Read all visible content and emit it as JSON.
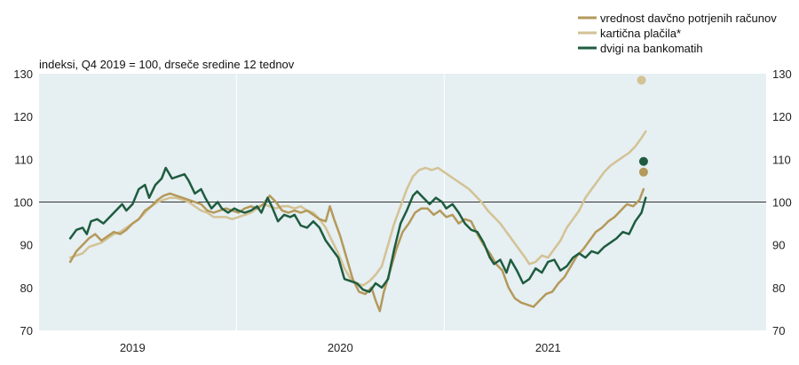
{
  "chart_data": {
    "type": "line",
    "ylabel": "indeksi, Q4 2019 = 100, drseče sredine 12 tednov",
    "ylim": [
      70,
      130
    ],
    "yticks": [
      70,
      80,
      90,
      100,
      110,
      120,
      130
    ],
    "ytick_labels": [
      "70",
      "80",
      "90",
      "100",
      "110",
      "120",
      "130"
    ],
    "xlim": [
      2018.55,
      2022.05
    ],
    "xtick_labels": [
      {
        "label": "2019",
        "x": 2019.0
      },
      {
        "label": "2020",
        "x": 2020.0
      },
      {
        "label": "2021",
        "x": 2021.0
      }
    ],
    "year_separators": [
      2019.5,
      2020.5
    ],
    "reference_line": 100,
    "grid": false,
    "legend_position": "top-right",
    "series": [
      {
        "name": "vrednost davčno potrjenih računov",
        "color": "#b4995a",
        "points": [
          [
            2018.7,
            86
          ],
          [
            2018.73,
            88.5
          ],
          [
            2018.76,
            90
          ],
          [
            2018.79,
            91.5
          ],
          [
            2018.82,
            92.5
          ],
          [
            2018.85,
            91
          ],
          [
            2018.88,
            92
          ],
          [
            2018.91,
            93
          ],
          [
            2018.94,
            92.5
          ],
          [
            2018.97,
            93.5
          ],
          [
            2019.0,
            95
          ],
          [
            2019.03,
            96
          ],
          [
            2019.06,
            98
          ],
          [
            2019.09,
            99
          ],
          [
            2019.12,
            100.5
          ],
          [
            2019.15,
            101.5
          ],
          [
            2019.18,
            102
          ],
          [
            2019.21,
            101.5
          ],
          [
            2019.24,
            101
          ],
          [
            2019.27,
            100.5
          ],
          [
            2019.3,
            100
          ],
          [
            2019.33,
            99.5
          ],
          [
            2019.36,
            98
          ],
          [
            2019.39,
            97.5
          ],
          [
            2019.42,
            98
          ],
          [
            2019.45,
            98.5
          ],
          [
            2019.48,
            98
          ],
          [
            2019.51,
            97.5
          ],
          [
            2019.54,
            98.5
          ],
          [
            2019.57,
            99
          ],
          [
            2019.6,
            98.5
          ],
          [
            2019.63,
            99.5
          ],
          [
            2019.66,
            101.5
          ],
          [
            2019.69,
            100
          ],
          [
            2019.72,
            98
          ],
          [
            2019.75,
            97.5
          ],
          [
            2019.78,
            98
          ],
          [
            2019.81,
            97.5
          ],
          [
            2019.84,
            98
          ],
          [
            2019.87,
            97
          ],
          [
            2019.9,
            96
          ],
          [
            2019.93,
            95.5
          ],
          [
            2019.95,
            99
          ],
          [
            2019.97,
            96
          ],
          [
            2020.0,
            92
          ],
          [
            2020.03,
            87
          ],
          [
            2020.06,
            82
          ],
          [
            2020.09,
            79
          ],
          [
            2020.12,
            78.5
          ],
          [
            2020.15,
            80
          ],
          [
            2020.17,
            77
          ],
          [
            2020.19,
            74.5
          ],
          [
            2020.21,
            79
          ],
          [
            2020.24,
            84
          ],
          [
            2020.27,
            89
          ],
          [
            2020.3,
            93
          ],
          [
            2020.33,
            95
          ],
          [
            2020.36,
            97.5
          ],
          [
            2020.39,
            98.5
          ],
          [
            2020.42,
            98.5
          ],
          [
            2020.45,
            97
          ],
          [
            2020.48,
            98
          ],
          [
            2020.51,
            96.5
          ],
          [
            2020.54,
            97
          ],
          [
            2020.57,
            95
          ],
          [
            2020.6,
            96
          ],
          [
            2020.63,
            95.5
          ],
          [
            2020.66,
            92.5
          ],
          [
            2020.69,
            90
          ],
          [
            2020.72,
            88
          ],
          [
            2020.75,
            85.5
          ],
          [
            2020.78,
            84
          ],
          [
            2020.81,
            80
          ],
          [
            2020.84,
            77.5
          ],
          [
            2020.87,
            76.5
          ],
          [
            2020.9,
            76
          ],
          [
            2020.93,
            75.5
          ],
          [
            2020.96,
            77
          ],
          [
            2020.99,
            78.5
          ],
          [
            2021.02,
            79
          ],
          [
            2021.05,
            81
          ],
          [
            2021.08,
            82.5
          ],
          [
            2021.11,
            85
          ],
          [
            2021.14,
            87.5
          ],
          [
            2021.17,
            89
          ],
          [
            2021.2,
            91
          ],
          [
            2021.23,
            93
          ],
          [
            2021.26,
            94
          ],
          [
            2021.29,
            95.5
          ],
          [
            2021.32,
            96.5
          ],
          [
            2021.35,
            98
          ],
          [
            2021.38,
            99.5
          ],
          [
            2021.41,
            99
          ],
          [
            2021.44,
            100.5
          ],
          [
            2021.46,
            103
          ]
        ],
        "marker": [
          2021.46,
          107
        ]
      },
      {
        "name": "kartična plačila*",
        "color": "#d3c294",
        "points": [
          [
            2018.7,
            87
          ],
          [
            2018.73,
            87.5
          ],
          [
            2018.76,
            88
          ],
          [
            2018.79,
            89.5
          ],
          [
            2018.82,
            90
          ],
          [
            2018.85,
            90.5
          ],
          [
            2018.88,
            91.5
          ],
          [
            2018.91,
            92.5
          ],
          [
            2018.94,
            93
          ],
          [
            2018.97,
            94
          ],
          [
            2019.0,
            95
          ],
          [
            2019.03,
            96
          ],
          [
            2019.06,
            97.5
          ],
          [
            2019.09,
            99
          ],
          [
            2019.12,
            100
          ],
          [
            2019.15,
            100.5
          ],
          [
            2019.18,
            101
          ],
          [
            2019.21,
            101
          ],
          [
            2019.24,
            100.5
          ],
          [
            2019.27,
            100
          ],
          [
            2019.3,
            99
          ],
          [
            2019.33,
            98
          ],
          [
            2019.36,
            97.5
          ],
          [
            2019.39,
            96.5
          ],
          [
            2019.42,
            96.5
          ],
          [
            2019.45,
            96.5
          ],
          [
            2019.48,
            96
          ],
          [
            2019.51,
            96.5
          ],
          [
            2019.54,
            97
          ],
          [
            2019.57,
            97.5
          ],
          [
            2019.6,
            98.5
          ],
          [
            2019.63,
            99.5
          ],
          [
            2019.66,
            99
          ],
          [
            2019.69,
            98.5
          ],
          [
            2019.72,
            99
          ],
          [
            2019.75,
            99
          ],
          [
            2019.78,
            98.5
          ],
          [
            2019.81,
            99
          ],
          [
            2019.84,
            98
          ],
          [
            2019.87,
            97.5
          ],
          [
            2019.9,
            96
          ],
          [
            2019.93,
            94
          ],
          [
            2019.96,
            91
          ],
          [
            2019.99,
            88
          ],
          [
            2020.02,
            84.5
          ],
          [
            2020.05,
            82
          ],
          [
            2020.08,
            81
          ],
          [
            2020.11,
            80.5
          ],
          [
            2020.14,
            81.5
          ],
          [
            2020.17,
            83
          ],
          [
            2020.2,
            85
          ],
          [
            2020.23,
            90
          ],
          [
            2020.26,
            95
          ],
          [
            2020.29,
            99
          ],
          [
            2020.32,
            103
          ],
          [
            2020.35,
            106
          ],
          [
            2020.38,
            107.5
          ],
          [
            2020.41,
            108
          ],
          [
            2020.44,
            107.5
          ],
          [
            2020.47,
            108
          ],
          [
            2020.5,
            107
          ],
          [
            2020.53,
            106
          ],
          [
            2020.56,
            105
          ],
          [
            2020.59,
            104
          ],
          [
            2020.62,
            103
          ],
          [
            2020.65,
            101.5
          ],
          [
            2020.68,
            100
          ],
          [
            2020.71,
            98
          ],
          [
            2020.74,
            96.5
          ],
          [
            2020.77,
            95
          ],
          [
            2020.8,
            93
          ],
          [
            2020.83,
            91
          ],
          [
            2020.86,
            89
          ],
          [
            2020.89,
            87
          ],
          [
            2020.91,
            85.5
          ],
          [
            2020.94,
            86
          ],
          [
            2020.97,
            87.5
          ],
          [
            2021.0,
            87
          ],
          [
            2021.03,
            89
          ],
          [
            2021.06,
            91
          ],
          [
            2021.09,
            94
          ],
          [
            2021.12,
            96
          ],
          [
            2021.15,
            98
          ],
          [
            2021.18,
            101
          ],
          [
            2021.21,
            103
          ],
          [
            2021.24,
            105
          ],
          [
            2021.27,
            107
          ],
          [
            2021.3,
            108.5
          ],
          [
            2021.33,
            109.5
          ],
          [
            2021.36,
            110.5
          ],
          [
            2021.39,
            111.5
          ],
          [
            2021.42,
            113
          ],
          [
            2021.45,
            115
          ],
          [
            2021.47,
            116.5
          ]
        ],
        "marker": [
          2021.45,
          128.5
        ]
      },
      {
        "name": "dvigi na bankomatih",
        "color": "#1e5c3f",
        "points": [
          [
            2018.7,
            91.5
          ],
          [
            2018.73,
            93.5
          ],
          [
            2018.76,
            94
          ],
          [
            2018.78,
            92.5
          ],
          [
            2018.8,
            95.5
          ],
          [
            2018.83,
            96
          ],
          [
            2018.86,
            95
          ],
          [
            2018.89,
            96.5
          ],
          [
            2018.92,
            98
          ],
          [
            2018.95,
            99.5
          ],
          [
            2018.97,
            98
          ],
          [
            2019.0,
            99.5
          ],
          [
            2019.03,
            103
          ],
          [
            2019.06,
            104
          ],
          [
            2019.08,
            101
          ],
          [
            2019.11,
            104
          ],
          [
            2019.14,
            105.5
          ],
          [
            2019.16,
            108
          ],
          [
            2019.19,
            105.5
          ],
          [
            2019.22,
            106
          ],
          [
            2019.25,
            106.5
          ],
          [
            2019.27,
            105
          ],
          [
            2019.3,
            102
          ],
          [
            2019.33,
            103
          ],
          [
            2019.35,
            101
          ],
          [
            2019.38,
            98.5
          ],
          [
            2019.41,
            100
          ],
          [
            2019.43,
            98.5
          ],
          [
            2019.46,
            97.5
          ],
          [
            2019.49,
            98.5
          ],
          [
            2019.51,
            98
          ],
          [
            2019.54,
            97.5
          ],
          [
            2019.57,
            98
          ],
          [
            2019.6,
            99
          ],
          [
            2019.62,
            97.5
          ],
          [
            2019.65,
            101
          ],
          [
            2019.67,
            99
          ],
          [
            2019.7,
            95.5
          ],
          [
            2019.73,
            97
          ],
          [
            2019.76,
            96.5
          ],
          [
            2019.78,
            97
          ],
          [
            2019.81,
            94.5
          ],
          [
            2019.84,
            94
          ],
          [
            2019.87,
            95.5
          ],
          [
            2019.9,
            94
          ],
          [
            2019.93,
            91
          ],
          [
            2019.96,
            89
          ],
          [
            2019.99,
            87
          ],
          [
            2020.02,
            82
          ],
          [
            2020.05,
            81.5
          ],
          [
            2020.08,
            81
          ],
          [
            2020.11,
            79.5
          ],
          [
            2020.14,
            79
          ],
          [
            2020.17,
            81
          ],
          [
            2020.2,
            80
          ],
          [
            2020.23,
            82
          ],
          [
            2020.26,
            89
          ],
          [
            2020.29,
            95
          ],
          [
            2020.32,
            98
          ],
          [
            2020.35,
            101.5
          ],
          [
            2020.37,
            102.5
          ],
          [
            2020.4,
            101
          ],
          [
            2020.43,
            99.5
          ],
          [
            2020.46,
            101
          ],
          [
            2020.49,
            100
          ],
          [
            2020.51,
            98.5
          ],
          [
            2020.54,
            99.5
          ],
          [
            2020.57,
            97.5
          ],
          [
            2020.6,
            95
          ],
          [
            2020.63,
            93.5
          ],
          [
            2020.66,
            93
          ],
          [
            2020.69,
            90.5
          ],
          [
            2020.72,
            87
          ],
          [
            2020.74,
            85.5
          ],
          [
            2020.77,
            86.5
          ],
          [
            2020.8,
            83.5
          ],
          [
            2020.82,
            86.5
          ],
          [
            2020.85,
            84
          ],
          [
            2020.88,
            81
          ],
          [
            2020.91,
            82
          ],
          [
            2020.94,
            84.5
          ],
          [
            2020.97,
            83.5
          ],
          [
            2021.0,
            86
          ],
          [
            2021.03,
            86.5
          ],
          [
            2021.06,
            84
          ],
          [
            2021.09,
            85
          ],
          [
            2021.12,
            87
          ],
          [
            2021.15,
            88
          ],
          [
            2021.18,
            87
          ],
          [
            2021.21,
            88.5
          ],
          [
            2021.24,
            88
          ],
          [
            2021.27,
            89.5
          ],
          [
            2021.3,
            90.5
          ],
          [
            2021.33,
            91.5
          ],
          [
            2021.36,
            93
          ],
          [
            2021.39,
            92.5
          ],
          [
            2021.42,
            95.5
          ],
          [
            2021.45,
            97.5
          ],
          [
            2021.47,
            101
          ]
        ],
        "marker": [
          2021.46,
          109.5
        ]
      }
    ]
  }
}
